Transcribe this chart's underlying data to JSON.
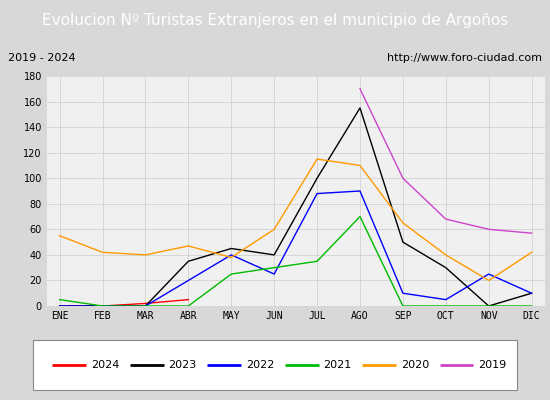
{
  "title": "Evolucion Nº Turistas Extranjeros en el municipio de Argoños",
  "subtitle_left": "2019 - 2024",
  "subtitle_right": "http://www.foro-ciudad.com",
  "months": [
    "ENE",
    "FEB",
    "MAR",
    "ABR",
    "MAY",
    "JUN",
    "JUL",
    "AGO",
    "SEP",
    "OCT",
    "NOV",
    "DIC"
  ],
  "series": {
    "2024": {
      "color": "#ff0000",
      "data": [
        0,
        0,
        2,
        5,
        null,
        null,
        null,
        null,
        null,
        null,
        null,
        null
      ]
    },
    "2023": {
      "color": "#000000",
      "data": [
        0,
        0,
        0,
        35,
        45,
        40,
        100,
        155,
        50,
        30,
        0,
        10
      ]
    },
    "2022": {
      "color": "#0000ff",
      "data": [
        0,
        0,
        0,
        20,
        40,
        25,
        88,
        90,
        10,
        5,
        25,
        10
      ]
    },
    "2021": {
      "color": "#00bb00",
      "data": [
        5,
        0,
        0,
        0,
        25,
        30,
        35,
        70,
        0,
        0,
        0,
        0
      ]
    },
    "2020": {
      "color": "#ff9900",
      "data": [
        55,
        42,
        40,
        47,
        38,
        60,
        115,
        110,
        65,
        40,
        20,
        42
      ]
    },
    "2019": {
      "color": "#cc44cc",
      "data": [
        null,
        null,
        null,
        null,
        null,
        null,
        null,
        170,
        100,
        68,
        60,
        57
      ]
    }
  },
  "ylim": [
    0,
    180
  ],
  "yticks": [
    0,
    20,
    40,
    60,
    80,
    100,
    120,
    140,
    160,
    180
  ],
  "title_bg": "#4472c4",
  "title_color": "#ffffff",
  "title_fontsize": 11,
  "subtitle_fontsize": 8,
  "axis_tick_fontsize": 7,
  "legend_fontsize": 8,
  "fig_bg": "#d8d8d8",
  "plot_bg": "#f0f0f0",
  "subplot_bg": "#ffffff"
}
